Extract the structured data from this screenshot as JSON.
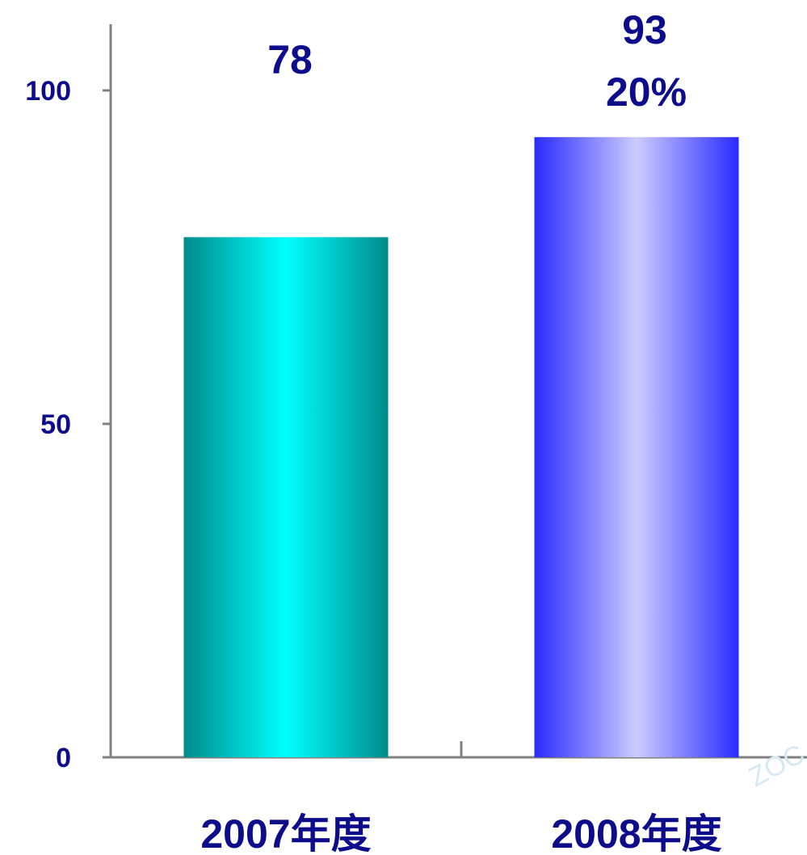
{
  "chart_data": {
    "type": "bar",
    "categories": [
      "2007年度",
      "2008年度"
    ],
    "values": [
      78,
      93
    ],
    "ylim": [
      0,
      100
    ],
    "yticks": [
      "0",
      "50",
      "100"
    ],
    "data_labels": [
      "78",
      "93"
    ],
    "annotations": [
      "20%"
    ],
    "bar_styles": [
      {
        "edge": "#008b8b",
        "center": "#00ffff"
      },
      {
        "edge": "#2a2aff",
        "center": "#ccccff"
      }
    ],
    "label_color": "#0d0d8c",
    "axis_color": "#808080",
    "grid": false,
    "legend": "none"
  },
  "watermark": "ZOC"
}
